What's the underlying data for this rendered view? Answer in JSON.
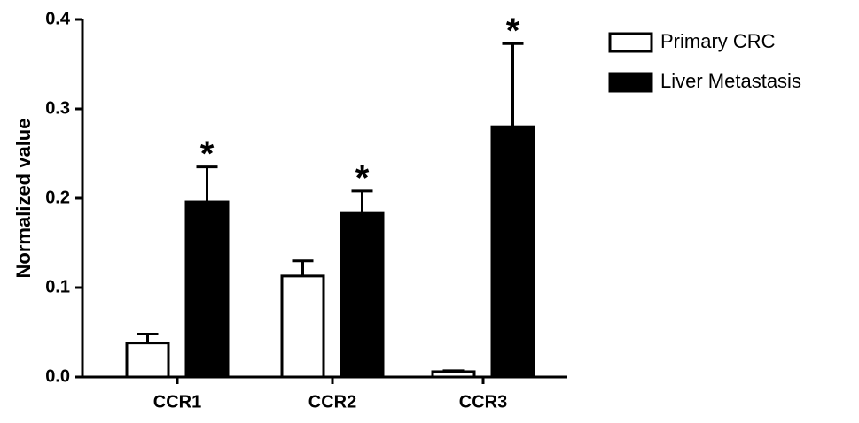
{
  "chart_data": {
    "type": "bar",
    "ylabel": "Normalized value",
    "categories": [
      "CCR1",
      "CCR2",
      "CCR3"
    ],
    "series": [
      {
        "name": "Primary CRC",
        "color": "#ffffff",
        "values": [
          0.038,
          0.113,
          0.006
        ],
        "errors": [
          0.01,
          0.017,
          0.001
        ]
      },
      {
        "name": "Liver Metastasis",
        "color": "#000000",
        "values": [
          0.196,
          0.184,
          0.28
        ],
        "errors": [
          0.039,
          0.024,
          0.093
        ],
        "annotations": [
          "*",
          "*",
          "*"
        ]
      }
    ],
    "ylim": [
      0,
      0.4
    ],
    "yticks": [
      {
        "value": 0,
        "label": "0.0"
      },
      0.1,
      0.2,
      0.3,
      0.4
    ],
    "legend": "upper right"
  }
}
